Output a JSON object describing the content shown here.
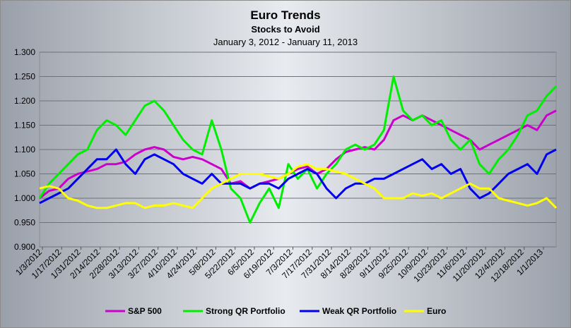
{
  "chart_data": {
    "type": "line",
    "title": "Euro Trends",
    "subtitle": "Stocks to Avoid",
    "date_range": "January 3, 2012 - January 11, 2013",
    "xlabel": "",
    "ylabel": "",
    "ylim": [
      0.9,
      1.3
    ],
    "yticks": [
      "0.900",
      "0.950",
      "1.000",
      "1.050",
      "1.100",
      "1.150",
      "1.200",
      "1.250",
      "1.300"
    ],
    "grid": true,
    "legend_position": "bottom",
    "x_tick_labels": [
      "1/3/2012",
      "1/17/2012",
      "1/31/2012",
      "2/14/2012",
      "2/28/2012",
      "3/13/2012",
      "3/27/2012",
      "4/10/2012",
      "4/24/2012",
      "5/8/2012",
      "5/22/2012",
      "6/5/2012",
      "6/19/2012",
      "7/3/2012",
      "7/17/2012",
      "7/31/2012",
      "8/14/2012",
      "8/28/2012",
      "9/11/2012",
      "9/25/2012",
      "10/9/2012",
      "10/23/2012",
      "11/6/2012",
      "11/20/2012",
      "12/4/2012",
      "12/18/2012",
      "1/1/2013"
    ],
    "x": [
      "1/3/2012",
      "1/10/2012",
      "1/17/2012",
      "1/24/2012",
      "1/31/2012",
      "2/7/2012",
      "2/14/2012",
      "2/21/2012",
      "2/28/2012",
      "3/6/2012",
      "3/13/2012",
      "3/20/2012",
      "3/27/2012",
      "4/3/2012",
      "4/10/2012",
      "4/17/2012",
      "4/24/2012",
      "5/1/2012",
      "5/8/2012",
      "5/15/2012",
      "5/22/2012",
      "5/29/2012",
      "6/5/2012",
      "6/12/2012",
      "6/19/2012",
      "6/26/2012",
      "7/3/2012",
      "7/10/2012",
      "7/17/2012",
      "7/24/2012",
      "7/31/2012",
      "8/7/2012",
      "8/14/2012",
      "8/21/2012",
      "8/28/2012",
      "9/4/2012",
      "9/11/2012",
      "9/18/2012",
      "9/25/2012",
      "10/2/2012",
      "10/9/2012",
      "10/16/2012",
      "10/23/2012",
      "10/30/2012",
      "11/6/2012",
      "11/13/2012",
      "11/20/2012",
      "11/27/2012",
      "12/4/2012",
      "12/11/2012",
      "12/18/2012",
      "12/25/2012",
      "1/1/2013",
      "1/8/2013",
      "1/11/2013"
    ],
    "series": [
      {
        "name": "S&P 500",
        "color": "#cc00cc",
        "values": [
          1.0,
          1.015,
          1.02,
          1.04,
          1.05,
          1.055,
          1.06,
          1.07,
          1.07,
          1.075,
          1.09,
          1.1,
          1.105,
          1.1,
          1.085,
          1.08,
          1.085,
          1.08,
          1.07,
          1.06,
          1.03,
          1.035,
          1.02,
          1.03,
          1.035,
          1.04,
          1.05,
          1.06,
          1.065,
          1.05,
          1.06,
          1.08,
          1.095,
          1.1,
          1.105,
          1.1,
          1.12,
          1.16,
          1.17,
          1.16,
          1.17,
          1.16,
          1.15,
          1.14,
          1.13,
          1.12,
          1.1,
          1.11,
          1.12,
          1.13,
          1.14,
          1.15,
          1.14,
          1.17,
          1.18
        ]
      },
      {
        "name": "Strong QR Portfolio",
        "color": "#00ee00",
        "values": [
          1.0,
          1.03,
          1.05,
          1.07,
          1.09,
          1.1,
          1.14,
          1.16,
          1.15,
          1.13,
          1.16,
          1.19,
          1.2,
          1.18,
          1.15,
          1.12,
          1.1,
          1.09,
          1.16,
          1.1,
          1.02,
          1.0,
          0.95,
          0.99,
          1.02,
          0.98,
          1.07,
          1.04,
          1.06,
          1.02,
          1.05,
          1.07,
          1.1,
          1.11,
          1.1,
          1.11,
          1.14,
          1.25,
          1.18,
          1.16,
          1.17,
          1.15,
          1.16,
          1.12,
          1.1,
          1.12,
          1.07,
          1.05,
          1.08,
          1.1,
          1.13,
          1.17,
          1.18,
          1.21,
          1.23
        ]
      },
      {
        "name": "Weak QR Portfolio",
        "color": "#0000ee",
        "values": [
          0.99,
          1.0,
          1.01,
          1.02,
          1.04,
          1.06,
          1.08,
          1.08,
          1.1,
          1.07,
          1.05,
          1.08,
          1.09,
          1.08,
          1.07,
          1.05,
          1.04,
          1.03,
          1.05,
          1.03,
          1.03,
          1.03,
          1.02,
          1.03,
          1.03,
          1.02,
          1.04,
          1.05,
          1.06,
          1.05,
          1.02,
          1.0,
          1.02,
          1.03,
          1.03,
          1.04,
          1.04,
          1.05,
          1.06,
          1.07,
          1.08,
          1.06,
          1.07,
          1.05,
          1.06,
          1.02,
          1.0,
          1.01,
          1.03,
          1.05,
          1.06,
          1.07,
          1.05,
          1.09,
          1.1
        ]
      },
      {
        "name": "Euro",
        "color": "#ffff00",
        "values": [
          1.02,
          1.025,
          1.02,
          1.0,
          0.995,
          0.985,
          0.98,
          0.98,
          0.985,
          0.99,
          0.99,
          0.98,
          0.985,
          0.985,
          0.99,
          0.985,
          0.98,
          1.0,
          1.02,
          1.03,
          1.04,
          1.05,
          1.05,
          1.05,
          1.045,
          1.04,
          1.05,
          1.065,
          1.07,
          1.06,
          1.06,
          1.055,
          1.05,
          1.04,
          1.03,
          1.02,
          1.0,
          1.0,
          1.0,
          1.01,
          1.005,
          1.01,
          1.0,
          1.01,
          1.02,
          1.03,
          1.02,
          1.02,
          1.0,
          0.995,
          0.99,
          0.985,
          0.99,
          1.0,
          0.98
        ]
      }
    ]
  }
}
